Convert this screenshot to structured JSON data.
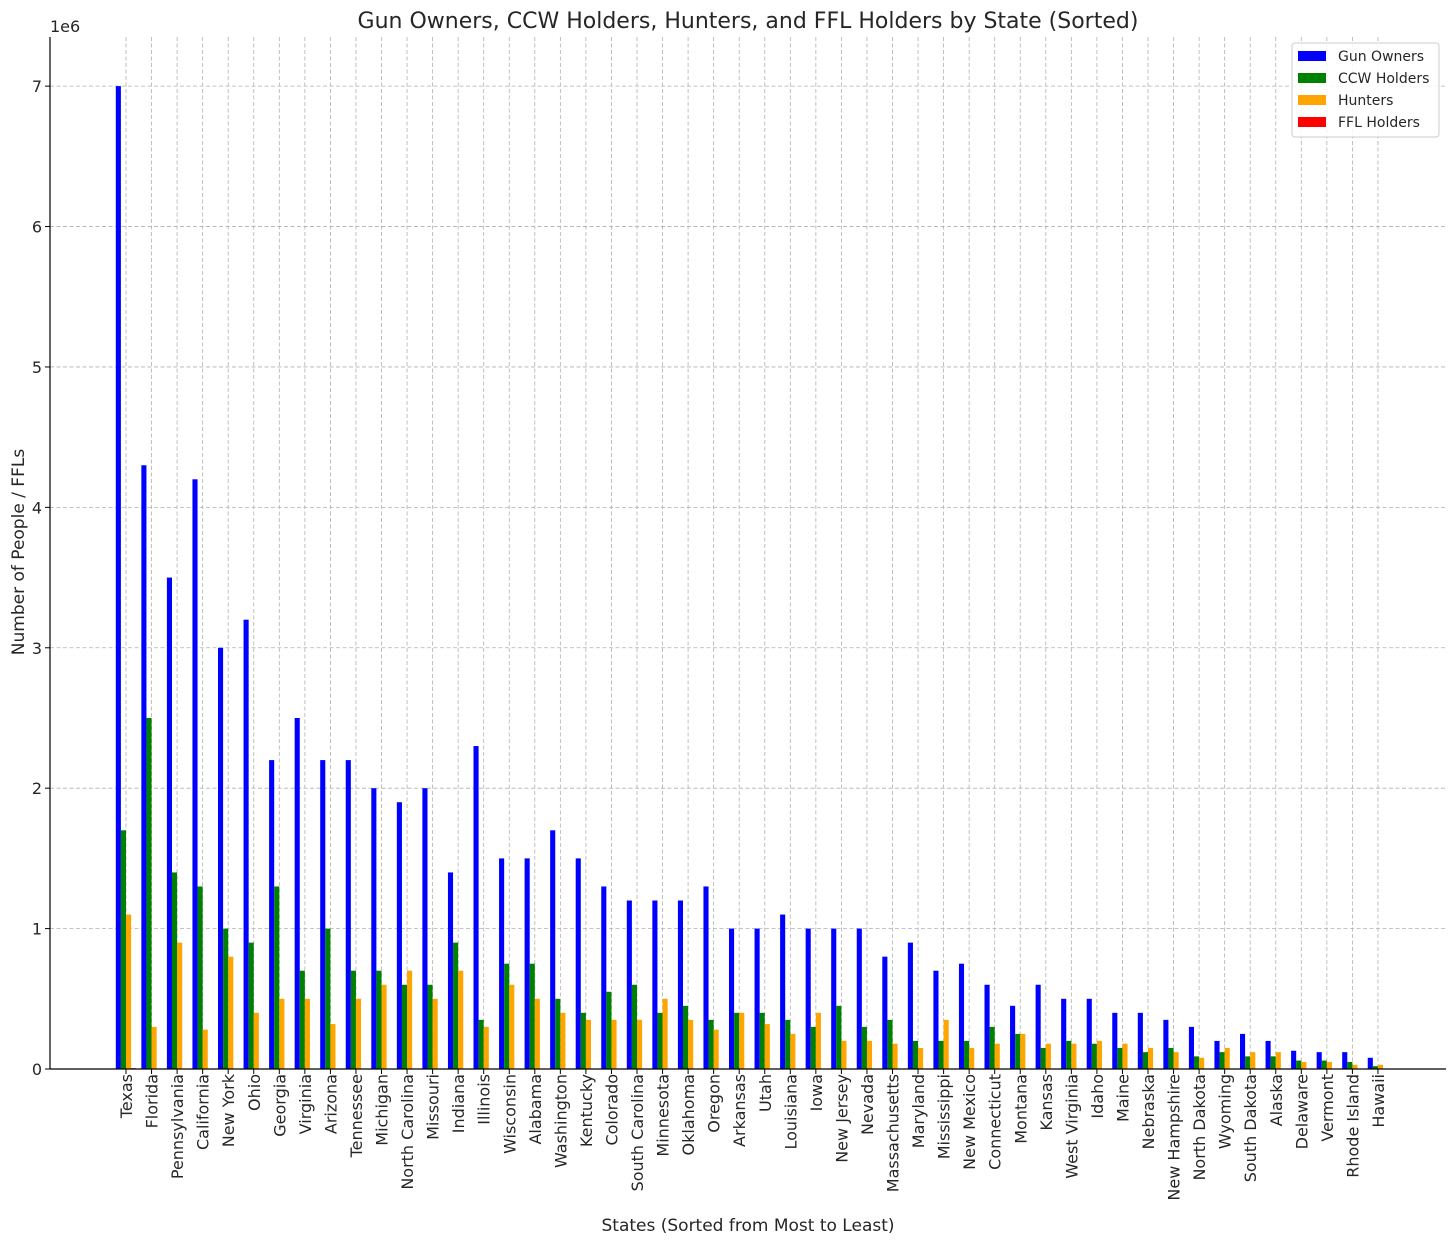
{
  "chart_data": {
    "type": "bar",
    "title": "Gun Owners, CCW Holders, Hunters, and FFL Holders by State (Sorted)",
    "xlabel": "States (Sorted from Most to Least)",
    "ylabel": "Number of People / FFLs",
    "y_offset_text": "1e6",
    "ylim": [
      0,
      7350000
    ],
    "y_ticks": [
      0,
      1000000,
      2000000,
      3000000,
      4000000,
      5000000,
      6000000,
      7000000
    ],
    "y_tick_labels": [
      "0",
      "1",
      "2",
      "3",
      "4",
      "5",
      "6",
      "7"
    ],
    "grid": true,
    "legend_position": "top-right",
    "categories": [
      "Texas",
      "Florida",
      "Pennsylvania",
      "California",
      "New York",
      "Ohio",
      "Georgia",
      "Virginia",
      "Arizona",
      "Tennessee",
      "Michigan",
      "North Carolina",
      "Missouri",
      "Indiana",
      "Illinois",
      "Wisconsin",
      "Alabama",
      "Washington",
      "Kentucky",
      "Colorado",
      "South Carolina",
      "Minnesota",
      "Oklahoma",
      "Oregon",
      "Arkansas",
      "Utah",
      "Louisiana",
      "Iowa",
      "New Jersey",
      "Nevada",
      "Massachusetts",
      "Maryland",
      "Mississippi",
      "New Mexico",
      "Connecticut",
      "Montana",
      "Kansas",
      "West Virginia",
      "Idaho",
      "Maine",
      "Nebraska",
      "New Hampshire",
      "North Dakota",
      "Wyoming",
      "South Dakota",
      "Alaska",
      "Delaware",
      "Vermont",
      "Rhode Island",
      "Hawaii"
    ],
    "series": [
      {
        "name": "Gun Owners",
        "color": "#0000ff",
        "values": [
          7000000,
          4300000,
          3500000,
          4200000,
          3000000,
          3200000,
          2200000,
          2500000,
          2200000,
          2200000,
          2000000,
          1900000,
          2000000,
          1400000,
          2300000,
          1500000,
          1500000,
          1700000,
          1500000,
          1300000,
          1200000,
          1200000,
          1200000,
          1300000,
          1000000,
          1000000,
          1100000,
          1000000,
          1000000,
          1000000,
          800000,
          900000,
          700000,
          750000,
          600000,
          450000,
          600000,
          500000,
          500000,
          400000,
          400000,
          350000,
          300000,
          200000,
          250000,
          200000,
          130000,
          120000,
          120000,
          80000
        ]
      },
      {
        "name": "CCW Holders",
        "color": "#008000",
        "values": [
          1700000,
          2500000,
          1400000,
          1300000,
          1000000,
          900000,
          1300000,
          700000,
          1000000,
          700000,
          700000,
          600000,
          600000,
          900000,
          350000,
          750000,
          750000,
          500000,
          400000,
          550000,
          600000,
          400000,
          450000,
          350000,
          400000,
          400000,
          350000,
          300000,
          450000,
          300000,
          350000,
          200000,
          200000,
          200000,
          300000,
          250000,
          150000,
          200000,
          180000,
          150000,
          120000,
          150000,
          90000,
          120000,
          90000,
          90000,
          60000,
          60000,
          50000,
          20000
        ]
      },
      {
        "name": "Hunters",
        "color": "#ffa500",
        "values": [
          1100000,
          300000,
          900000,
          280000,
          800000,
          400000,
          500000,
          500000,
          320000,
          500000,
          600000,
          700000,
          500000,
          700000,
          300000,
          600000,
          500000,
          400000,
          350000,
          350000,
          350000,
          500000,
          350000,
          280000,
          400000,
          320000,
          250000,
          400000,
          200000,
          200000,
          180000,
          150000,
          350000,
          150000,
          180000,
          250000,
          180000,
          180000,
          200000,
          180000,
          150000,
          120000,
          80000,
          150000,
          120000,
          120000,
          50000,
          50000,
          30000,
          30000
        ]
      },
      {
        "name": "FFL Holders",
        "color": "#ff0000",
        "values": [
          6000,
          4000,
          3500,
          3000,
          2000,
          3000,
          2500,
          2500,
          3000,
          2500,
          2500,
          2500,
          2000,
          2000,
          1500,
          2000,
          2000,
          1500,
          1500,
          1800,
          1500,
          1500,
          1800,
          1500,
          1500,
          1500,
          1200,
          1200,
          800,
          1000,
          800,
          700,
          1000,
          900,
          600,
          1000,
          1000,
          700,
          800,
          600,
          700,
          500,
          600,
          600,
          600,
          700,
          200,
          300,
          200,
          300
        ]
      }
    ]
  }
}
